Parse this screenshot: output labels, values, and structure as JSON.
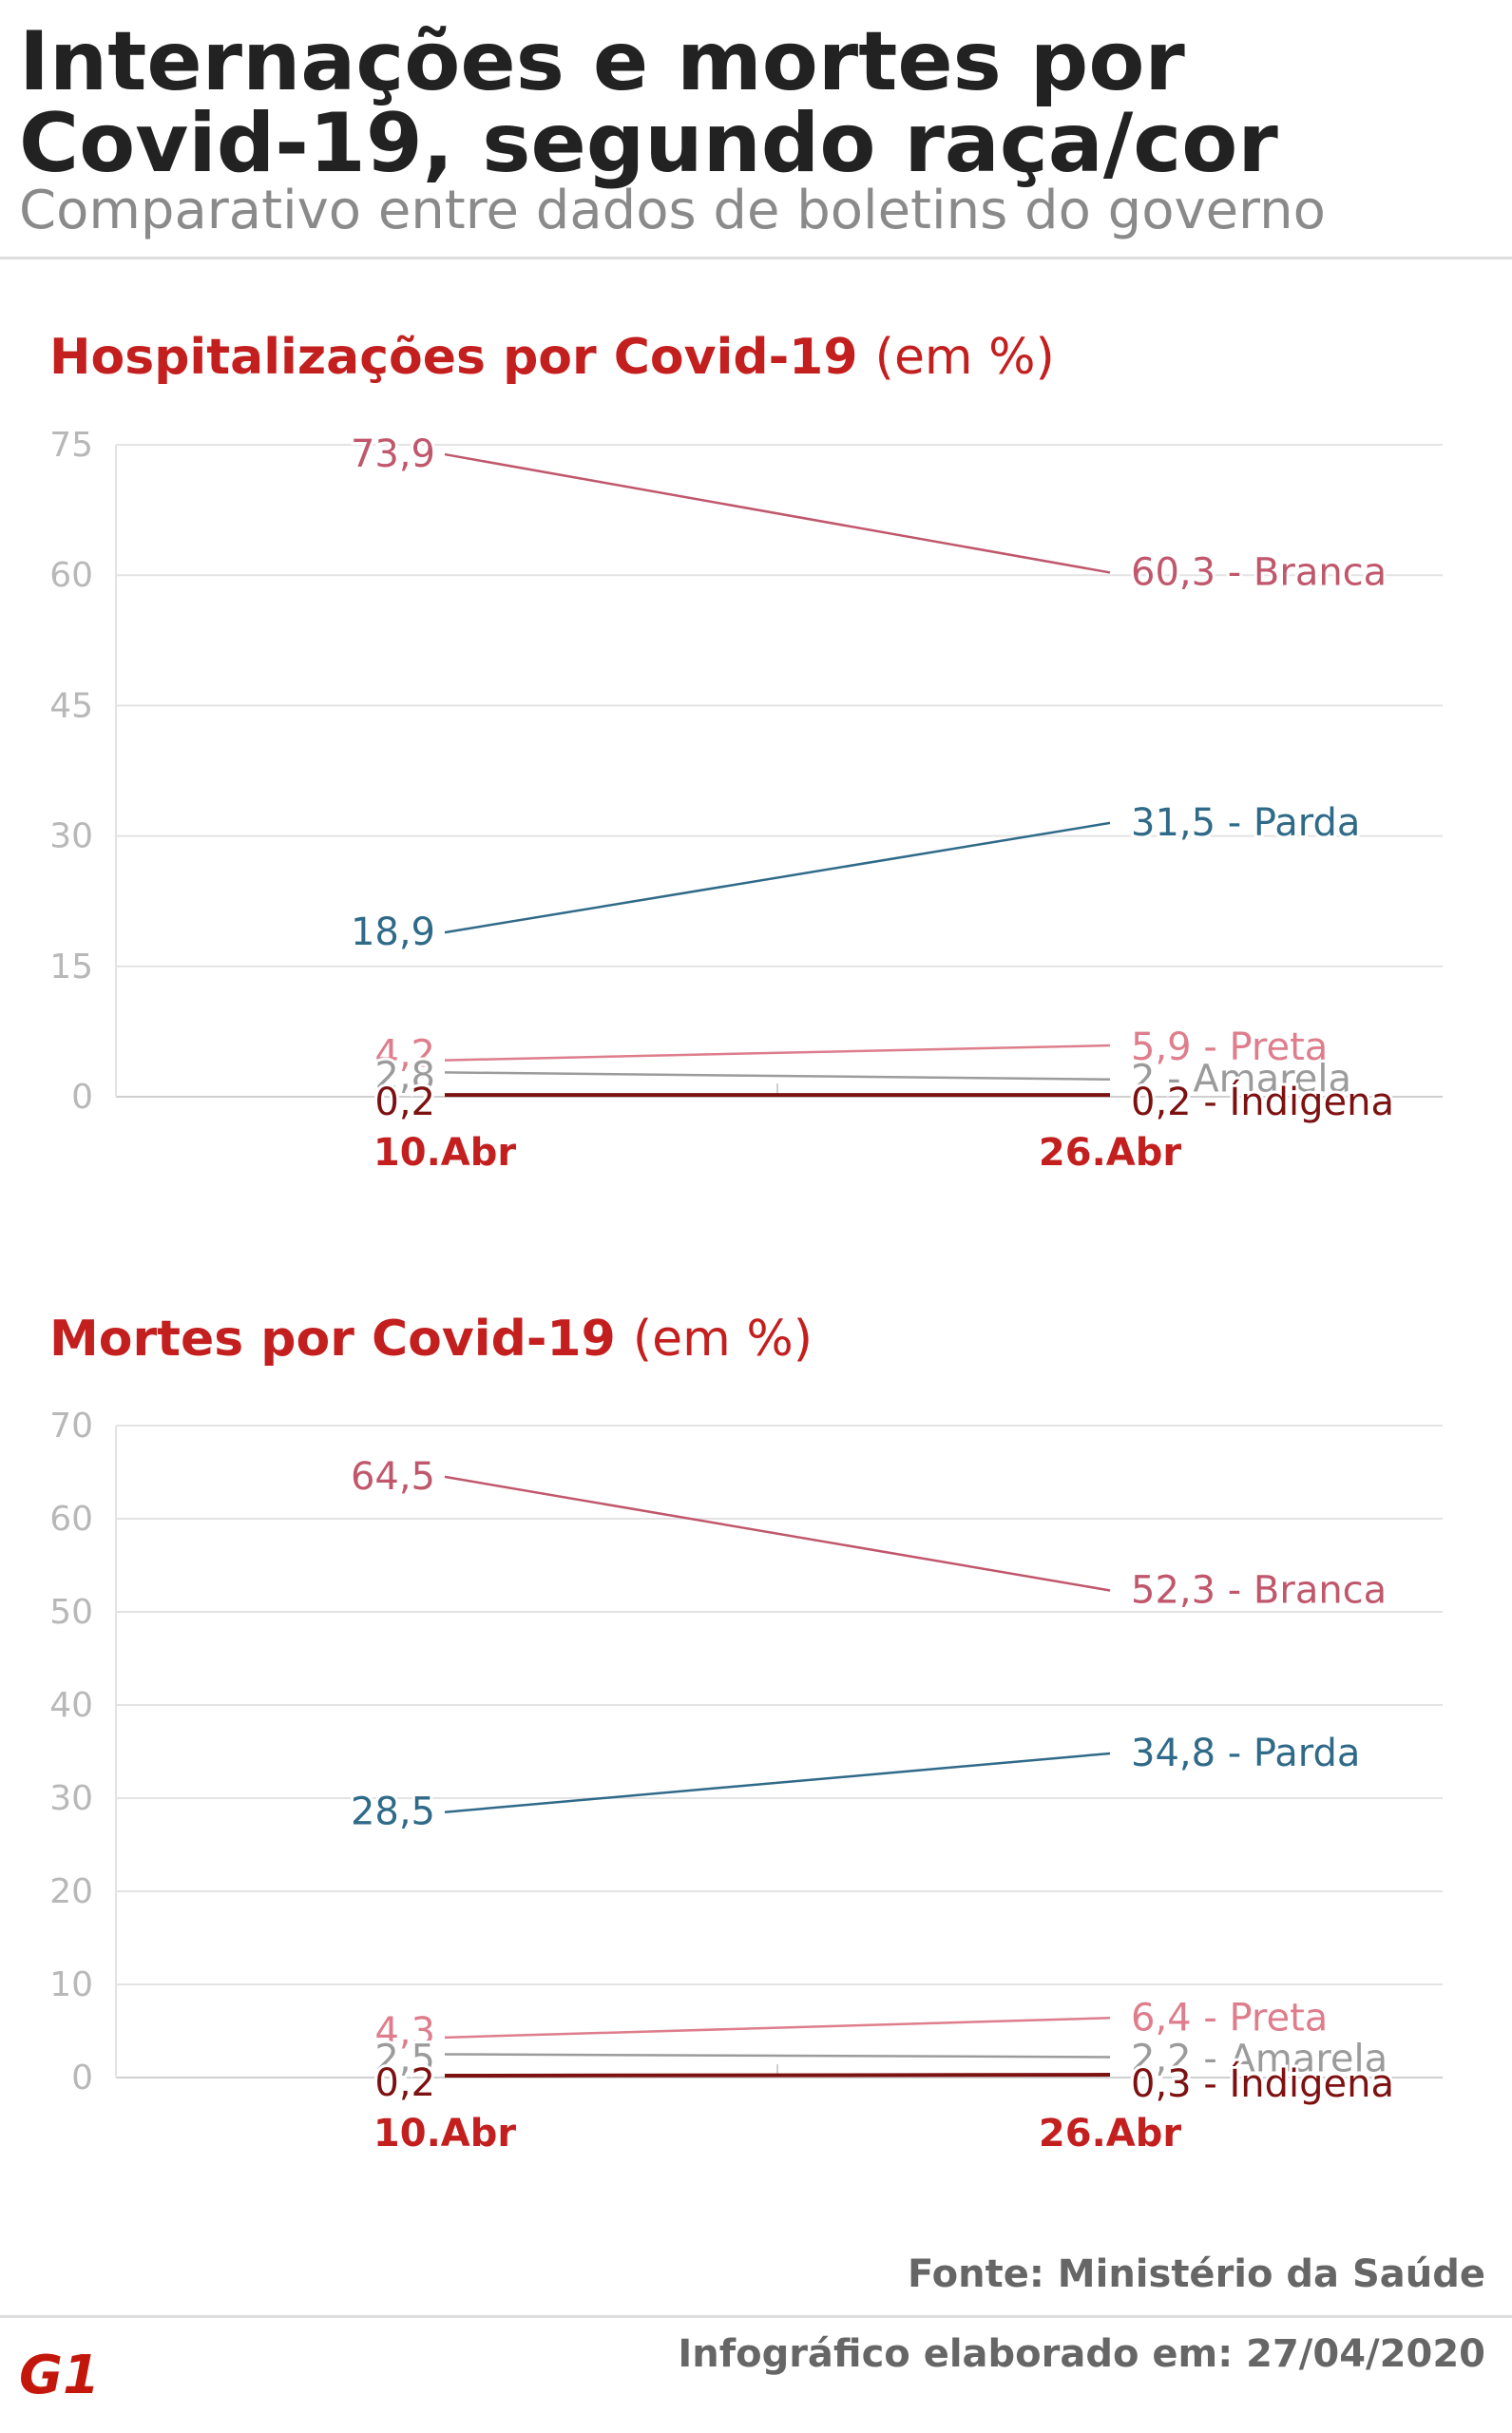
{
  "header": {
    "title": "Internações e mortes por Covid-19, segundo raça/cor",
    "subtitle": "Comparativo entre dados de boletins do governo"
  },
  "colors": {
    "Branca": "#c0576c",
    "Parda": "#2f6a88",
    "Preta": "#de7d8c",
    "Amarela": "#9b9b9b",
    "Indigena": "#7d1111",
    "heading": "#c41f1f",
    "axis_tick": "#b8b8b8",
    "grid": "#e3e3e3"
  },
  "chart_data": [
    {
      "type": "line",
      "title": "Hospitalizações por Covid-19",
      "title_unit": "(em %)",
      "x": [
        "10.Abr",
        "26.Abr"
      ],
      "ylim": [
        0,
        75
      ],
      "yticks": [
        0,
        15,
        30,
        45,
        60,
        75
      ],
      "grid": true,
      "series": [
        {
          "name": "Branca",
          "values": [
            73.9,
            60.3
          ],
          "labels": [
            "73,9",
            "60,3 - Branca"
          ]
        },
        {
          "name": "Parda",
          "values": [
            18.9,
            31.5
          ],
          "labels": [
            "18,9",
            "31,5 - Parda"
          ]
        },
        {
          "name": "Preta",
          "values": [
            4.2,
            5.9
          ],
          "labels": [
            "4,2",
            "5,9 - Preta"
          ]
        },
        {
          "name": "Amarela",
          "values": [
            2.8,
            2
          ],
          "labels": [
            "2,8",
            "2 - Amarela"
          ]
        },
        {
          "name": "Indígena",
          "values": [
            0.2,
            0.2
          ],
          "labels": [
            "0,2",
            "0,2 - Índigena"
          ]
        }
      ]
    },
    {
      "type": "line",
      "title": "Mortes por Covid-19",
      "title_unit": "(em %)",
      "x": [
        "10.Abr",
        "26.Abr"
      ],
      "ylim": [
        0,
        70
      ],
      "yticks": [
        0,
        10,
        20,
        30,
        40,
        50,
        60,
        70
      ],
      "grid": true,
      "series": [
        {
          "name": "Branca",
          "values": [
            64.5,
            52.3
          ],
          "labels": [
            "64,5",
            "52,3 - Branca"
          ]
        },
        {
          "name": "Parda",
          "values": [
            28.5,
            34.8
          ],
          "labels": [
            "28,5",
            "34,8 - Parda"
          ]
        },
        {
          "name": "Preta",
          "values": [
            4.3,
            6.4
          ],
          "labels": [
            "4,3",
            "6,4 - Preta"
          ]
        },
        {
          "name": "Amarela",
          "values": [
            2.5,
            2.2
          ],
          "labels": [
            "2,5",
            "2,2 - Amarela"
          ]
        },
        {
          "name": "Indígena",
          "values": [
            0.2,
            0.3
          ],
          "labels": [
            "0,2",
            "0,3 - Índigena"
          ]
        }
      ]
    }
  ],
  "footer": {
    "source": "Fonte: Ministério da Saúde",
    "credit": "Infográfico elaborado em: 27/04/2020",
    "logo_text": "G1"
  }
}
